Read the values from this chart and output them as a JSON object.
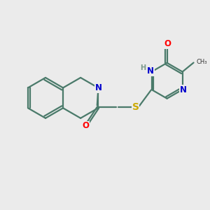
{
  "bg_color": "#ebebeb",
  "bond_color": "#4a7a6a",
  "line_width": 1.6,
  "atom_colors": {
    "N": "#0000cc",
    "O": "#ff0000",
    "S": "#ccaa00",
    "H": "#7a9a8a",
    "C": "#000000"
  },
  "font_size": 8.5,
  "figsize": [
    3.0,
    3.0
  ],
  "dpi": 100
}
